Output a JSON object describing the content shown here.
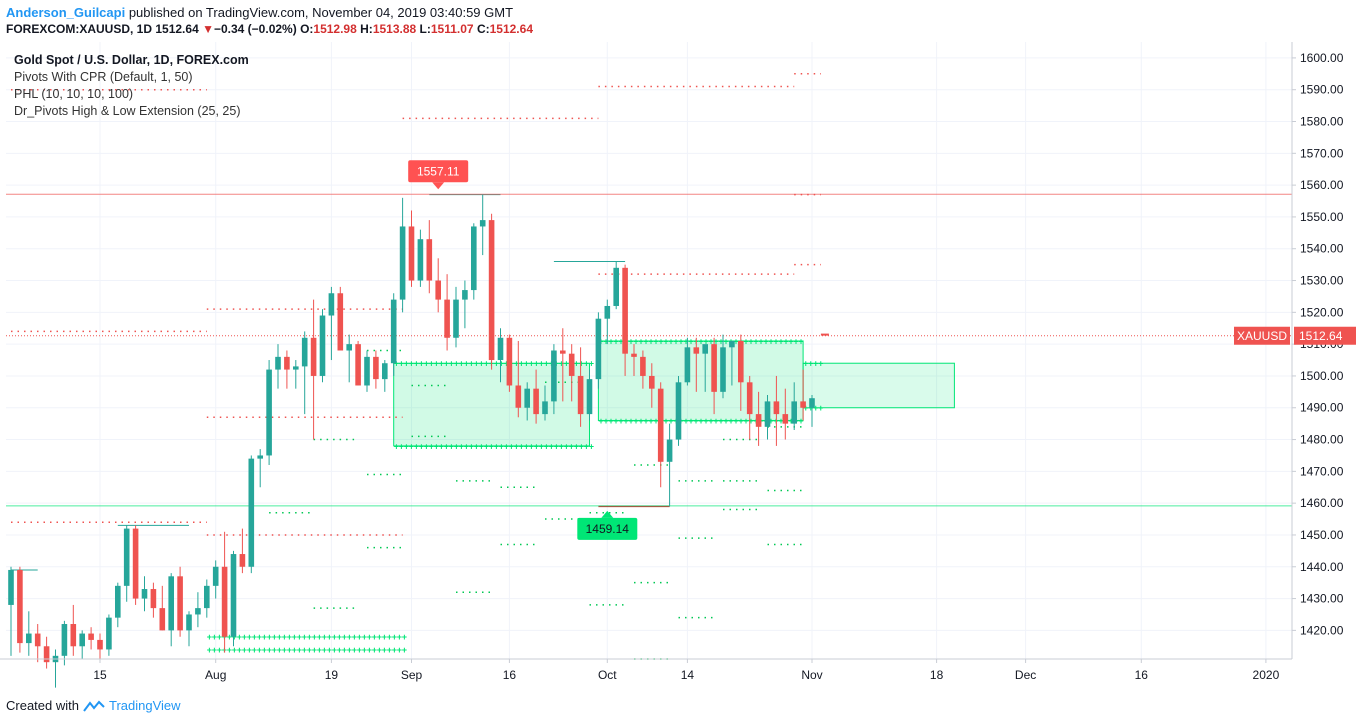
{
  "header": {
    "author": "Anderson_Guilcapi",
    "published_text": " published on TradingView.com, November 04, 2019 03:40:59 GMT",
    "symbol_line": "FOREXCOM:XAUUSD, 1D",
    "last": "1512.64",
    "change_arrow": "▼",
    "change": "−0.34 (−0.02%)",
    "o_label": "O:",
    "o_value": "1512.98",
    "h_label": "H:",
    "h_value": "1513.88",
    "l_label": "L:",
    "l_value": "1511.07",
    "c_label": "C:",
    "c_value": "1512.64"
  },
  "legend": {
    "symbol": "Gold Spot / U.S. Dollar, 1D, FOREX.com",
    "indicators": [
      "Pivots With CPR (Default, 1, 50)",
      "PHL (10, 10, 10, 100)",
      "Dr_Pivots High & Low Extension (25, 25)"
    ]
  },
  "footer": {
    "created_with": "Created with",
    "brand": "TradingView"
  },
  "colors": {
    "up": "#26a69a",
    "down": "#ef5350",
    "up_bright": "#00e676",
    "high_line": "#ef5350",
    "low_line": "#00e676",
    "axis_text": "#131722"
  },
  "chart_data": {
    "type": "candlestick",
    "symbol": "XAUUSD",
    "last_price": 1512.64,
    "last_label": "XAUUSD",
    "ylim": [
      1411,
      1605
    ],
    "yticks": [
      1420,
      1430,
      1440,
      1450,
      1460,
      1470,
      1480,
      1490,
      1500,
      1510,
      1520,
      1530,
      1540,
      1550,
      1560,
      1570,
      1580,
      1590,
      1600
    ],
    "xticks": [
      {
        "label": "15",
        "i": 10
      },
      {
        "label": "Aug",
        "i": 23
      },
      {
        "label": "19",
        "i": 36
      },
      {
        "label": "Sep",
        "i": 45
      },
      {
        "label": "16",
        "i": 56
      },
      {
        "label": "Oct",
        "i": 67
      },
      {
        "label": "14",
        "i": 76
      },
      {
        "label": "Nov",
        "i": 90
      },
      {
        "label": "18",
        "i": 104
      },
      {
        "label": "Dec",
        "i": 114
      },
      {
        "label": "16",
        "i": 127
      },
      {
        "label": "2020",
        "i": 141
      }
    ],
    "annotations": [
      {
        "text": "1557.11",
        "price": 1557.11,
        "i": 48,
        "kind": "high"
      },
      {
        "text": "1459.14",
        "price": 1459.14,
        "i": 67,
        "kind": "low"
      }
    ],
    "horizontal_lines": [
      {
        "price": 1557.11,
        "kind": "resistance"
      },
      {
        "price": 1459.14,
        "kind": "support"
      }
    ],
    "candles": [
      {
        "o": 1428,
        "h": 1440,
        "l": 1412,
        "c": 1439
      },
      {
        "o": 1439,
        "h": 1440,
        "l": 1413,
        "c": 1416
      },
      {
        "o": 1416,
        "h": 1426,
        "l": 1412,
        "c": 1419
      },
      {
        "o": 1419,
        "h": 1422,
        "l": 1410,
        "c": 1415
      },
      {
        "o": 1415,
        "h": 1418,
        "l": 1408,
        "c": 1410
      },
      {
        "o": 1410,
        "h": 1414,
        "l": 1402,
        "c": 1412
      },
      {
        "o": 1412,
        "h": 1423,
        "l": 1409,
        "c": 1422
      },
      {
        "o": 1422,
        "h": 1428,
        "l": 1412,
        "c": 1415
      },
      {
        "o": 1415,
        "h": 1420,
        "l": 1411,
        "c": 1419
      },
      {
        "o": 1419,
        "h": 1421,
        "l": 1414,
        "c": 1417
      },
      {
        "o": 1417,
        "h": 1419,
        "l": 1410,
        "c": 1414
      },
      {
        "o": 1414,
        "h": 1425,
        "l": 1412,
        "c": 1424
      },
      {
        "o": 1424,
        "h": 1435,
        "l": 1421,
        "c": 1434
      },
      {
        "o": 1434,
        "h": 1453,
        "l": 1429,
        "c": 1452
      },
      {
        "o": 1452,
        "h": 1453,
        "l": 1428,
        "c": 1430
      },
      {
        "o": 1430,
        "h": 1437,
        "l": 1426,
        "c": 1433
      },
      {
        "o": 1433,
        "h": 1435,
        "l": 1424,
        "c": 1427
      },
      {
        "o": 1427,
        "h": 1434,
        "l": 1420,
        "c": 1420
      },
      {
        "o": 1420,
        "h": 1438,
        "l": 1415,
        "c": 1437
      },
      {
        "o": 1437,
        "h": 1440,
        "l": 1418,
        "c": 1420
      },
      {
        "o": 1420,
        "h": 1426,
        "l": 1415,
        "c": 1425
      },
      {
        "o": 1425,
        "h": 1432,
        "l": 1421,
        "c": 1427
      },
      {
        "o": 1427,
        "h": 1436,
        "l": 1424,
        "c": 1434
      },
      {
        "o": 1434,
        "h": 1442,
        "l": 1430,
        "c": 1440
      },
      {
        "o": 1440,
        "h": 1451,
        "l": 1413,
        "c": 1418
      },
      {
        "o": 1418,
        "h": 1445,
        "l": 1415,
        "c": 1444
      },
      {
        "o": 1444,
        "h": 1452,
        "l": 1438,
        "c": 1440
      },
      {
        "o": 1440,
        "h": 1475,
        "l": 1438,
        "c": 1474
      },
      {
        "o": 1474,
        "h": 1477,
        "l": 1465,
        "c": 1475
      },
      {
        "o": 1475,
        "h": 1505,
        "l": 1472,
        "c": 1502
      },
      {
        "o": 1502,
        "h": 1510,
        "l": 1496,
        "c": 1506
      },
      {
        "o": 1506,
        "h": 1508,
        "l": 1496,
        "c": 1502
      },
      {
        "o": 1502,
        "h": 1505,
        "l": 1496,
        "c": 1503
      },
      {
        "o": 1503,
        "h": 1514,
        "l": 1488,
        "c": 1512
      },
      {
        "o": 1512,
        "h": 1524,
        "l": 1480,
        "c": 1500
      },
      {
        "o": 1500,
        "h": 1521,
        "l": 1498,
        "c": 1519
      },
      {
        "o": 1519,
        "h": 1528,
        "l": 1505,
        "c": 1526
      },
      {
        "o": 1526,
        "h": 1528,
        "l": 1508,
        "c": 1508
      },
      {
        "o": 1508,
        "h": 1513,
        "l": 1498,
        "c": 1510
      },
      {
        "o": 1510,
        "h": 1511,
        "l": 1497,
        "c": 1497
      },
      {
        "o": 1497,
        "h": 1508,
        "l": 1495,
        "c": 1506
      },
      {
        "o": 1506,
        "h": 1508,
        "l": 1496,
        "c": 1499
      },
      {
        "o": 1499,
        "h": 1505,
        "l": 1495,
        "c": 1504
      },
      {
        "o": 1504,
        "h": 1526,
        "l": 1500,
        "c": 1524
      },
      {
        "o": 1524,
        "h": 1556,
        "l": 1520,
        "c": 1547
      },
      {
        "o": 1547,
        "h": 1552,
        "l": 1528,
        "c": 1530
      },
      {
        "o": 1530,
        "h": 1546,
        "l": 1528,
        "c": 1543
      },
      {
        "o": 1543,
        "h": 1549,
        "l": 1526,
        "c": 1530
      },
      {
        "o": 1530,
        "h": 1537,
        "l": 1520,
        "c": 1524
      },
      {
        "o": 1524,
        "h": 1532,
        "l": 1508,
        "c": 1512
      },
      {
        "o": 1512,
        "h": 1528,
        "l": 1509,
        "c": 1524
      },
      {
        "o": 1524,
        "h": 1530,
        "l": 1515,
        "c": 1527
      },
      {
        "o": 1527,
        "h": 1548,
        "l": 1524,
        "c": 1547
      },
      {
        "o": 1547,
        "h": 1557,
        "l": 1538,
        "c": 1549
      },
      {
        "o": 1549,
        "h": 1551,
        "l": 1502,
        "c": 1505
      },
      {
        "o": 1505,
        "h": 1515,
        "l": 1498,
        "c": 1512
      },
      {
        "o": 1512,
        "h": 1513,
        "l": 1495,
        "c": 1497
      },
      {
        "o": 1497,
        "h": 1511,
        "l": 1487,
        "c": 1490
      },
      {
        "o": 1490,
        "h": 1498,
        "l": 1486,
        "c": 1496
      },
      {
        "o": 1496,
        "h": 1502,
        "l": 1485,
        "c": 1488
      },
      {
        "o": 1488,
        "h": 1497,
        "l": 1486,
        "c": 1492
      },
      {
        "o": 1492,
        "h": 1510,
        "l": 1488,
        "c": 1508
      },
      {
        "o": 1508,
        "h": 1515,
        "l": 1492,
        "c": 1507
      },
      {
        "o": 1507,
        "h": 1510,
        "l": 1492,
        "c": 1500
      },
      {
        "o": 1500,
        "h": 1509,
        "l": 1484,
        "c": 1488
      },
      {
        "o": 1488,
        "h": 1502,
        "l": 1486,
        "c": 1499
      },
      {
        "o": 1499,
        "h": 1520,
        "l": 1496,
        "c": 1518
      },
      {
        "o": 1518,
        "h": 1524,
        "l": 1510,
        "c": 1522
      },
      {
        "o": 1522,
        "h": 1536,
        "l": 1521,
        "c": 1534
      },
      {
        "o": 1534,
        "h": 1535,
        "l": 1500,
        "c": 1507
      },
      {
        "o": 1507,
        "h": 1510,
        "l": 1500,
        "c": 1506
      },
      {
        "o": 1506,
        "h": 1508,
        "l": 1496,
        "c": 1500
      },
      {
        "o": 1500,
        "h": 1504,
        "l": 1490,
        "c": 1496
      },
      {
        "o": 1496,
        "h": 1498,
        "l": 1465,
        "c": 1473
      },
      {
        "o": 1473,
        "h": 1485,
        "l": 1459,
        "c": 1480
      },
      {
        "o": 1480,
        "h": 1500,
        "l": 1478,
        "c": 1498
      },
      {
        "o": 1498,
        "h": 1512,
        "l": 1497,
        "c": 1509
      },
      {
        "o": 1509,
        "h": 1512,
        "l": 1495,
        "c": 1507
      },
      {
        "o": 1507,
        "h": 1509,
        "l": 1495,
        "c": 1510
      },
      {
        "o": 1510,
        "h": 1512,
        "l": 1488,
        "c": 1495
      },
      {
        "o": 1495,
        "h": 1513,
        "l": 1493,
        "c": 1509
      },
      {
        "o": 1509,
        "h": 1511,
        "l": 1497,
        "c": 1511
      },
      {
        "o": 1511,
        "h": 1513,
        "l": 1489,
        "c": 1498
      },
      {
        "o": 1498,
        "h": 1500,
        "l": 1480,
        "c": 1488
      },
      {
        "o": 1488,
        "h": 1495,
        "l": 1478,
        "c": 1484
      },
      {
        "o": 1484,
        "h": 1494,
        "l": 1480,
        "c": 1492
      },
      {
        "o": 1492,
        "h": 1500,
        "l": 1478,
        "c": 1488
      },
      {
        "o": 1488,
        "h": 1496,
        "l": 1480,
        "c": 1485
      },
      {
        "o": 1485,
        "h": 1498,
        "l": 1483,
        "c": 1492
      },
      {
        "o": 1492,
        "h": 1502,
        "l": 1486,
        "c": 1490
      },
      {
        "o": 1490,
        "h": 1494,
        "l": 1484,
        "c": 1493
      }
    ]
  }
}
